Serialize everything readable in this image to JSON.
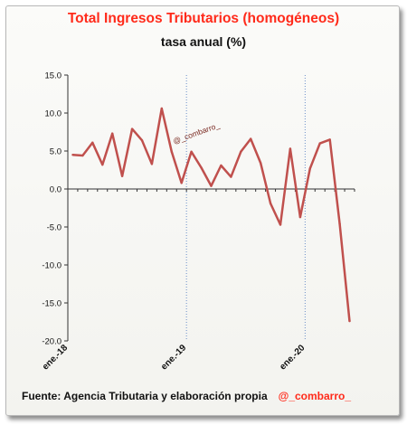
{
  "chart_data": {
    "type": "line",
    "title": "Total Ingresos Tributarios (homogéneos)",
    "subtitle": "tasa anual (%)",
    "source": "Fuente: Agencia Tributaria y elaboración propia",
    "handle": "@_combarro_",
    "watermark": "@_combarro_",
    "ylim": [
      -20,
      15
    ],
    "yticks": [
      "15.0",
      "10.0",
      "5.0",
      "0.0",
      "-5.0",
      "-10.0",
      "-15.0",
      "-20.0"
    ],
    "ytick_values": [
      15,
      10,
      5,
      0,
      -5,
      -10,
      -15,
      -20
    ],
    "xtick_labels": [
      {
        "index": 0,
        "label": "ene.-18"
      },
      {
        "index": 12,
        "label": "ene.-19"
      },
      {
        "index": 24,
        "label": "ene.-20"
      }
    ],
    "grid": {
      "horizontal": false,
      "vertical": "dotted at year ticks"
    },
    "series": [
      {
        "color": "#c0504d",
        "values": [
          4.5,
          4.4,
          6.1,
          3.2,
          7.3,
          1.7,
          7.9,
          6.4,
          3.3,
          10.6,
          4.9,
          0.8,
          4.9,
          2.8,
          0.4,
          3.1,
          1.6,
          4.9,
          6.6,
          3.4,
          -1.9,
          -4.7,
          5.3,
          -3.7,
          2.7,
          6.0,
          6.5,
          -4.6,
          -17.4
        ]
      }
    ]
  }
}
